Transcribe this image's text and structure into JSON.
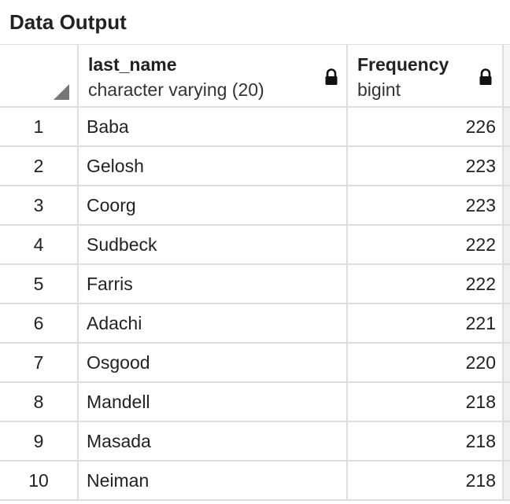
{
  "panel": {
    "title": "Data Output"
  },
  "columns": [
    {
      "name": "last_name",
      "type": "character varying (20)",
      "icon": "lock-icon"
    },
    {
      "name": "Frequency",
      "type": "bigint",
      "icon": "lock-icon"
    }
  ],
  "rows": [
    {
      "index": "1",
      "last_name": "Baba",
      "frequency": "226"
    },
    {
      "index": "2",
      "last_name": "Gelosh",
      "frequency": "223"
    },
    {
      "index": "3",
      "last_name": "Coorg",
      "frequency": "223"
    },
    {
      "index": "4",
      "last_name": "Sudbeck",
      "frequency": "222"
    },
    {
      "index": "5",
      "last_name": "Farris",
      "frequency": "222"
    },
    {
      "index": "6",
      "last_name": "Adachi",
      "frequency": "221"
    },
    {
      "index": "7",
      "last_name": "Osgood",
      "frequency": "220"
    },
    {
      "index": "8",
      "last_name": "Mandell",
      "frequency": "218"
    },
    {
      "index": "9",
      "last_name": "Masada",
      "frequency": "218"
    },
    {
      "index": "10",
      "last_name": "Neiman",
      "frequency": "218"
    }
  ]
}
